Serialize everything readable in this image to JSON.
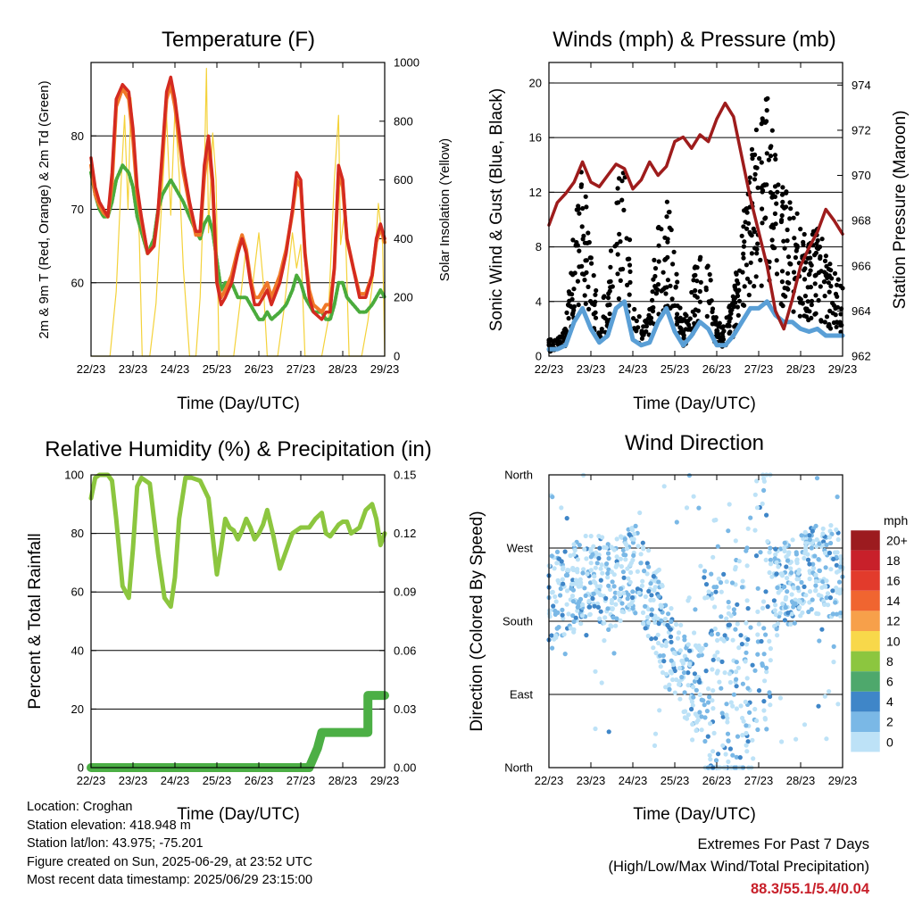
{
  "time_ticks": [
    "22/23",
    "23/23",
    "24/23",
    "25/23",
    "26/23",
    "27/23",
    "28/23",
    "29/23"
  ],
  "chart_data": [
    {
      "type": "line",
      "title": "Temperature (F)",
      "xlabel": "Time (Day/UTC)",
      "ylabel": "2m & 9m T (Red, Orange) & 2m Td (Green)",
      "y2label": "Solar Insolation (Yellow)",
      "ylim": [
        50,
        90
      ],
      "yticks": [
        60,
        70,
        80
      ],
      "y2lim": [
        0,
        1000
      ],
      "y2ticks": [
        0,
        200,
        400,
        600,
        800,
        1000
      ],
      "grid": true,
      "x": [
        0,
        0.1,
        0.2,
        0.3,
        0.4,
        0.5,
        0.6,
        0.75,
        0.9,
        1.0,
        1.1,
        1.2,
        1.35,
        1.5,
        1.6,
        1.7,
        1.8,
        1.9,
        2.0,
        2.2,
        2.35,
        2.5,
        2.6,
        2.7,
        2.8,
        2.9,
        3.0,
        3.1,
        3.2,
        3.35,
        3.5,
        3.6,
        3.7,
        3.8,
        3.9,
        4.0,
        4.1,
        4.2,
        4.3,
        4.5,
        4.65,
        4.8,
        4.9,
        5.0,
        5.1,
        5.2,
        5.3,
        5.5,
        5.6,
        5.7,
        5.8,
        5.9,
        6.0,
        6.1,
        6.25,
        6.4,
        6.55,
        6.7,
        6.8,
        6.9,
        7.0
      ],
      "series": [
        {
          "name": "2m T",
          "color": "#d42a20",
          "values": [
            77,
            73,
            71,
            70,
            69,
            75,
            85,
            87,
            86,
            81,
            73,
            69,
            64,
            65,
            70,
            78,
            86,
            88,
            85,
            76,
            71,
            67,
            67,
            76,
            80,
            74,
            60,
            57,
            58,
            60,
            64,
            66,
            64,
            60,
            57,
            57,
            58,
            59,
            57,
            60,
            64,
            70,
            75,
            74,
            64,
            58,
            56,
            55,
            56,
            56,
            62,
            76,
            74,
            66,
            62,
            58,
            58,
            61,
            66,
            68,
            66
          ]
        },
        {
          "name": "9m T",
          "color": "#f07828",
          "values": [
            76,
            72,
            70.5,
            69.5,
            69,
            73.5,
            84,
            86.5,
            85,
            79.5,
            72,
            68.5,
            64,
            65,
            69.5,
            77,
            85,
            87,
            84,
            75,
            70.5,
            66.5,
            66.5,
            74.5,
            79,
            73,
            60,
            58,
            59,
            61,
            64.5,
            66.5,
            64.5,
            60.5,
            58,
            58,
            59,
            60,
            58,
            61,
            64.5,
            69.5,
            74,
            73,
            64,
            59,
            57,
            56,
            57,
            57,
            62,
            75,
            73,
            66,
            62,
            58.5,
            58.5,
            61,
            65.5,
            67.5,
            65.5
          ]
        },
        {
          "name": "2m Td",
          "color": "#4aab3c",
          "values": [
            75,
            72,
            70,
            69,
            69,
            71,
            74,
            76,
            75,
            73,
            69,
            67,
            64,
            66,
            70,
            72,
            73,
            74,
            73,
            71,
            69,
            67,
            66,
            68,
            69,
            67,
            63,
            59,
            60,
            60,
            58,
            58,
            58,
            57,
            56,
            55,
            55,
            56,
            55,
            56,
            57,
            59,
            61,
            60,
            58,
            57,
            56,
            56,
            55,
            55,
            57,
            60,
            60,
            58,
            57,
            56,
            56,
            57,
            58,
            59,
            58
          ]
        },
        {
          "name": "Solar Insolation",
          "color": "#f4d23a",
          "axis": "y2",
          "x": [
            0,
            0.45,
            0.6,
            0.72,
            0.8,
            0.88,
            0.95,
            1.05,
            1.15,
            1.22,
            1.4,
            1.55,
            1.7,
            1.8,
            1.9,
            2.0,
            2.1,
            2.2,
            2.35,
            2.5,
            2.6,
            2.7,
            2.75,
            2.8,
            2.9,
            2.98,
            3.05,
            3.2,
            3.4,
            3.55,
            3.7,
            3.85,
            4.0,
            4.1,
            4.2,
            4.3,
            4.45,
            4.6,
            4.8,
            4.9,
            5.0,
            5.1,
            5.2,
            5.35,
            5.5,
            5.65,
            5.8,
            5.9,
            5.95,
            6.05,
            6.15,
            6.25,
            6.45,
            6.6,
            6.75,
            6.85,
            6.95,
            7.0
          ],
          "values": [
            0,
            0,
            220,
            600,
            820,
            500,
            880,
            700,
            400,
            0,
            0,
            180,
            560,
            820,
            480,
            840,
            620,
            300,
            0,
            0,
            200,
            620,
            980,
            420,
            760,
            600,
            0,
            0,
            0,
            180,
            380,
            240,
            420,
            260,
            0,
            0,
            0,
            160,
            420,
            300,
            380,
            0,
            0,
            0,
            0,
            120,
            600,
            820,
            380,
            500,
            0,
            0,
            0,
            120,
            300,
            520,
            380,
            0
          ]
        }
      ]
    },
    {
      "type": "line",
      "title": "Winds (mph) & Pressure (mb)",
      "xlabel": "Time (Day/UTC)",
      "ylabel": "Sonic Wind & Gust (Blue, Black)",
      "y2label": "Station Pressure (Maroon)",
      "ylim": [
        0,
        21.5
      ],
      "yticks": [
        0,
        4,
        8,
        12,
        16,
        20
      ],
      "y2lim": [
        962,
        975
      ],
      "y2ticks": [
        962,
        964,
        966,
        968,
        970,
        972,
        974
      ],
      "grid": true,
      "x": [
        0,
        0.2,
        0.4,
        0.6,
        0.8,
        1.0,
        1.2,
        1.4,
        1.6,
        1.8,
        2.0,
        2.2,
        2.4,
        2.6,
        2.8,
        3.0,
        3.2,
        3.4,
        3.6,
        3.8,
        4.0,
        4.2,
        4.4,
        4.6,
        4.8,
        5.0,
        5.2,
        5.4,
        5.6,
        5.8,
        6.0,
        6.2,
        6.4,
        6.6,
        6.8,
        7.0
      ],
      "series": [
        {
          "name": "Sonic Wind",
          "color": "#5a9fd6",
          "values": [
            0.5,
            0.5,
            0.8,
            2.5,
            3.5,
            2,
            1,
            1.5,
            3.5,
            4,
            1.2,
            0.8,
            1,
            2.5,
            3.5,
            1.8,
            0.8,
            1.5,
            2.5,
            2,
            0.8,
            0.8,
            1.5,
            2.5,
            3.5,
            3.5,
            4,
            3,
            2.5,
            2.5,
            2,
            1.8,
            2,
            1.5,
            1.5,
            1.5
          ]
        },
        {
          "name": "Gust",
          "color": "#000000",
          "values": [
            1,
            1,
            2,
            8,
            12,
            6,
            3,
            4,
            10,
            12,
            4,
            2,
            3,
            8,
            10,
            6,
            2,
            4,
            8,
            6,
            2,
            2,
            4,
            8,
            12,
            14,
            16,
            12,
            10,
            9,
            8,
            7,
            8,
            6,
            5,
            4
          ]
        },
        {
          "name": "Station Pressure",
          "color": "#9e1c1c",
          "axis": "y2",
          "values": [
            967.8,
            968.8,
            969.2,
            969.7,
            970.6,
            969.7,
            969.5,
            970.0,
            970.5,
            970.3,
            969.4,
            969.8,
            970.6,
            970.0,
            970.4,
            971.5,
            971.7,
            971.2,
            971.8,
            971.5,
            972.5,
            973.2,
            972.6,
            970.8,
            969.0,
            967.5,
            966.0,
            964.0,
            963.2,
            964.5,
            966.0,
            966.8,
            967.5,
            968.5,
            968.0,
            967.4
          ]
        }
      ]
    },
    {
      "type": "line",
      "title": "Relative Humidity (%) & Precipitation (in)",
      "xlabel": "Time (Day/UTC)",
      "ylabel": "Percent & Total Rainfall",
      "ylim": [
        0,
        100
      ],
      "yticks": [
        0,
        20,
        40,
        60,
        80,
        100
      ],
      "y2lim": [
        0,
        0.15
      ],
      "y2ticks": [
        "0.00",
        "0.03",
        "0.06",
        "0.09",
        "0.12",
        "0.15"
      ],
      "grid": true,
      "x": [
        0,
        0.1,
        0.2,
        0.4,
        0.5,
        0.6,
        0.75,
        0.9,
        1.0,
        1.1,
        1.2,
        1.4,
        1.6,
        1.75,
        1.9,
        2.0,
        2.1,
        2.25,
        2.4,
        2.6,
        2.8,
        3.0,
        3.1,
        3.2,
        3.3,
        3.4,
        3.5,
        3.6,
        3.7,
        3.8,
        3.9,
        4.0,
        4.1,
        4.2,
        4.35,
        4.5,
        4.6,
        4.8,
        5.0,
        5.2,
        5.35,
        5.5,
        5.6,
        5.7,
        5.8,
        5.9,
        6.0,
        6.1,
        6.2,
        6.4,
        6.55,
        6.7,
        6.8,
        6.9,
        7.0
      ],
      "series": [
        {
          "name": "Relative Humidity",
          "color": "#8cc63f",
          "values": [
            92,
            99,
            100,
            100,
            98,
            85,
            62,
            58,
            75,
            96,
            99,
            97,
            73,
            58,
            55,
            65,
            85,
            99,
            99,
            98,
            92,
            66,
            75,
            85,
            82,
            81,
            78,
            81,
            85,
            82,
            78,
            80,
            83,
            88,
            79,
            68,
            72,
            80,
            82,
            82,
            85,
            87,
            80,
            79,
            81,
            83,
            84,
            84,
            80,
            82,
            88,
            90,
            85,
            76,
            80
          ]
        },
        {
          "name": "Total Rainfall",
          "color": "#4caf45",
          "axis": "y2",
          "x": [
            0,
            5.2,
            5.4,
            5.5,
            6.0,
            6.0,
            6.2,
            6.3,
            6.4,
            6.6,
            6.6,
            7.0
          ],
          "values": [
            0,
            0,
            0.01,
            0.018,
            0.018,
            0.018,
            0.018,
            0.018,
            0.018,
            0.018,
            0.037,
            0.037
          ]
        }
      ]
    },
    {
      "type": "scatter",
      "title": "Wind Direction",
      "xlabel": "Time (Day/UTC)",
      "ylabel": "Direction (Colored By Speed)",
      "yticks": [
        "North",
        "East",
        "South",
        "West",
        "North"
      ],
      "ylim": [
        0,
        360
      ],
      "colorbar": {
        "unit": "mph",
        "labels": [
          "20+",
          "18",
          "16",
          "14",
          "12",
          "10",
          "8",
          "6",
          "4",
          "2",
          "0"
        ],
        "colors": [
          "#9c1b1f",
          "#c8202a",
          "#e23b2c",
          "#f06530",
          "#f7a04a",
          "#f8d84a",
          "#8cc63f",
          "#4ea86c",
          "#3f86c8",
          "#7ab8e6",
          "#bde2f7"
        ]
      },
      "x": [
        0,
        0.5,
        1.0,
        1.5,
        2.0,
        2.5,
        3.0,
        3.5,
        4.0,
        4.5,
        5.0,
        5.5,
        6.0,
        6.5,
        7.0
      ],
      "series": [
        {
          "name": "Direction",
          "values": [
            210,
            215,
            240,
            220,
            250,
            200,
            130,
            100,
            80,
            90,
            200,
            220,
            235,
            245,
            230
          ]
        }
      ]
    }
  ],
  "info": {
    "location": "Location: Croghan",
    "elevation": "Station elevation: 418.948 m",
    "latlon": "Station lat/lon: 43.975; -75.201",
    "created": "Figure created on Sun, 2025-06-29, at 23:52 UTC",
    "recent": "Most recent data timestamp: 2025/06/29 23:15:00"
  },
  "extremes": {
    "title": "Extremes For Past 7 Days",
    "subtitle": "(High/Low/Max Wind/Total Precipitation)",
    "values": "88.3/55.1/5.4/0.04"
  }
}
